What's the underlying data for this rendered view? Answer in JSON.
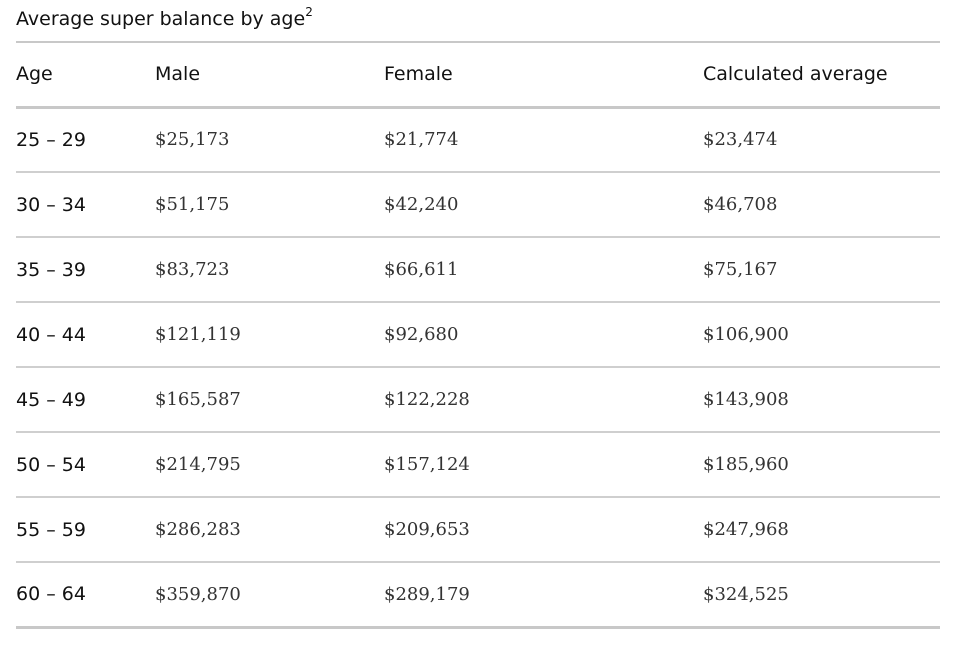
{
  "caption": {
    "text": "Average super balance by age",
    "footnote": "2"
  },
  "table": {
    "headers": {
      "age": "Age",
      "male": "Male",
      "female": "Female",
      "average": "Calculated average"
    },
    "rows": [
      {
        "age": "25 – 29",
        "male": "$25,173",
        "female": "$21,774",
        "average": "$23,474"
      },
      {
        "age": "30 – 34",
        "male": "$51,175",
        "female": "$42,240",
        "average": "$46,708"
      },
      {
        "age": "35 – 39",
        "male": "$83,723",
        "female": "$66,611",
        "average": "$75,167"
      },
      {
        "age": "40 – 44",
        "male": "$121,119",
        "female": "$92,680",
        "average": "$106,900"
      },
      {
        "age": "45 – 49",
        "male": "$165,587",
        "female": "$122,228",
        "average": "$143,908"
      },
      {
        "age": "50 – 54",
        "male": "$214,795",
        "female": "$157,124",
        "average": "$185,960"
      },
      {
        "age": "55 – 59",
        "male": "$286,283",
        "female": "$209,653",
        "average": "$247,968"
      },
      {
        "age": "60 – 64",
        "male": "$359,870",
        "female": "$289,179",
        "average": "$324,525"
      }
    ]
  }
}
